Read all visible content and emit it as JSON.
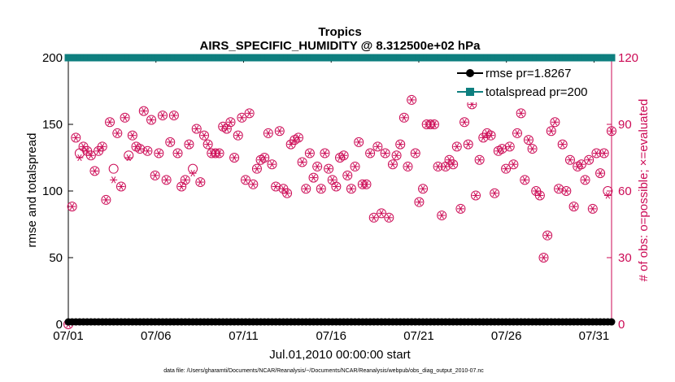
{
  "chart_data": {
    "type": "line",
    "title": "Tropics",
    "subtitle": "AIRS_SPECIFIC_HUMIDITY @ 8.312500e+02 hPa",
    "xlabel": "Jul.01,2010 00:00:00 start",
    "ylabel_left": "rmse and totalspread",
    "ylabel_right": "# of obs: o=possible; ×=evaluated",
    "footer": "data file: /Users/gharamti/Documents/NCAR/Reanalysis/~/Documents/NCAR/Reanalysis/webpub/obs_diag_output_2010-07.nc",
    "xlim": [
      1,
      32
    ],
    "ylim_left": [
      0,
      200
    ],
    "ylim_right": [
      0,
      120
    ],
    "x_ticks": [
      1,
      6,
      11,
      16,
      21,
      26,
      31
    ],
    "x_tick_labels": [
      "07/01",
      "07/06",
      "07/11",
      "07/16",
      "07/21",
      "07/26",
      "07/31"
    ],
    "y_ticks_left": [
      0,
      50,
      100,
      150,
      200
    ],
    "y_ticks_right": [
      0,
      30,
      60,
      90,
      120
    ],
    "grid": false,
    "legend_position": "top-right",
    "colors": {
      "rmse": "#000000",
      "totalspread": "#0e7f7f",
      "obs": "#cc0a55"
    },
    "series": [
      {
        "name": "rmse pr=1.8267",
        "axis": "left",
        "marker": "filled-circle",
        "y_constant": 1.8
      },
      {
        "name": "totalspread pr=200",
        "axis": "left",
        "marker": "filled-square",
        "y_constant": 200
      },
      {
        "name": "possible",
        "axis": "right",
        "marker": "circle",
        "y": [
          0,
          53,
          84,
          77,
          80,
          78,
          76,
          69,
          78,
          80,
          56,
          91,
          70,
          86,
          62,
          93,
          76,
          85,
          80,
          79,
          96,
          78,
          92,
          67,
          77,
          94,
          65,
          82,
          94,
          77,
          62,
          65,
          81,
          70,
          88,
          64,
          85,
          81,
          77,
          77,
          77,
          89,
          88,
          91,
          75,
          85,
          93,
          65,
          95,
          63,
          70,
          74,
          75,
          86,
          72,
          62,
          87,
          61,
          59,
          81,
          83,
          84,
          73,
          61,
          77,
          66,
          71,
          61,
          77,
          70,
          65,
          62,
          75,
          76,
          67,
          61,
          71,
          82,
          63,
          63,
          77,
          48,
          80,
          50,
          77,
          48,
          72,
          76,
          81,
          93,
          71,
          101,
          77,
          55,
          61,
          90,
          90,
          90,
          71,
          49,
          71,
          74,
          72,
          80,
          52,
          91,
          81,
          99,
          58,
          74,
          84,
          86,
          85,
          59,
          78,
          79,
          70,
          80,
          72,
          86,
          95,
          65,
          83,
          79,
          60,
          58,
          30,
          40,
          87,
          91,
          61,
          81,
          60,
          74,
          53,
          71,
          72,
          65,
          74,
          52,
          77,
          68,
          77,
          60,
          87
        ]
      },
      {
        "name": "evaluated",
        "axis": "right",
        "marker": "asterisk",
        "y": [
          0,
          53,
          84,
          75,
          80,
          78,
          76,
          69,
          78,
          80,
          56,
          91,
          65,
          86,
          62,
          93,
          75,
          85,
          80,
          79,
          96,
          78,
          92,
          67,
          77,
          94,
          65,
          82,
          94,
          77,
          62,
          65,
          81,
          68,
          88,
          64,
          85,
          81,
          77,
          77,
          77,
          89,
          88,
          91,
          75,
          85,
          93,
          65,
          95,
          63,
          70,
          74,
          75,
          86,
          72,
          62,
          87,
          61,
          59,
          81,
          83,
          84,
          73,
          61,
          77,
          66,
          71,
          61,
          77,
          70,
          65,
          62,
          75,
          76,
          67,
          61,
          71,
          82,
          63,
          63,
          77,
          48,
          80,
          50,
          77,
          48,
          72,
          76,
          81,
          93,
          71,
          101,
          77,
          55,
          61,
          90,
          90,
          90,
          71,
          49,
          71,
          74,
          72,
          80,
          52,
          91,
          81,
          99,
          58,
          74,
          84,
          86,
          85,
          59,
          78,
          79,
          70,
          80,
          72,
          86,
          95,
          65,
          83,
          79,
          60,
          58,
          30,
          40,
          87,
          91,
          61,
          81,
          60,
          74,
          53,
          71,
          72,
          65,
          74,
          52,
          77,
          68,
          77,
          58,
          87
        ]
      }
    ]
  }
}
